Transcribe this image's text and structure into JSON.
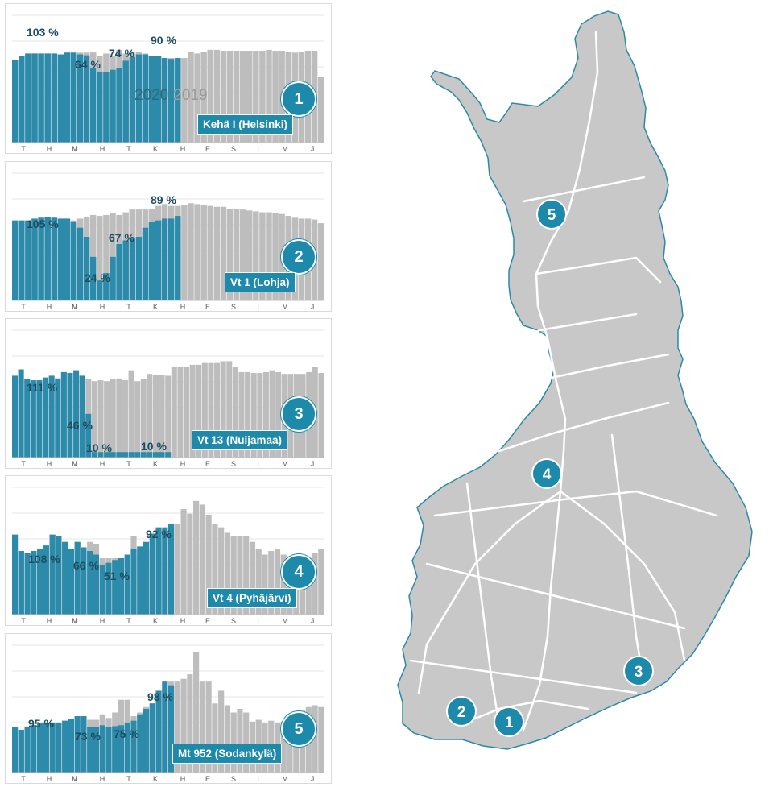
{
  "months": [
    "T",
    "H",
    "M",
    "H",
    "T",
    "K",
    "H",
    "E",
    "S",
    "L",
    "M",
    "J"
  ],
  "legend": {
    "y2020": "2020",
    "y2019": "2019"
  },
  "colors": {
    "y2020": "#2c8aaa",
    "y2019": "#bdbdbd",
    "accent": "#1e8aab",
    "map_fill": "#c8c8c8",
    "map_border": "#2a8aa8"
  },
  "chart_data": [
    {
      "type": "bar",
      "id": 1,
      "badge": "1",
      "label": "Kehä I (Helsinki)",
      "annotations": [
        "103 %",
        "64 %",
        "74 %",
        "90 %"
      ],
      "series": [
        {
          "name": "2020",
          "values": [
            91,
            95,
            98,
            98,
            98,
            98,
            98,
            97,
            99,
            99,
            97,
            96,
            82,
            78,
            78,
            80,
            82,
            90,
            94,
            97,
            97,
            95,
            95,
            93,
            92,
            93
          ]
        },
        {
          "name": "2019",
          "values": [
            91,
            95,
            98,
            98,
            98,
            98,
            98,
            97,
            99,
            99,
            99,
            99,
            100,
            95,
            98,
            95,
            102,
            98,
            99,
            100,
            98,
            95,
            95,
            93,
            93,
            92,
            93,
            100,
            98,
            100,
            102,
            102,
            101,
            101,
            101,
            101,
            101,
            101,
            101,
            102,
            101,
            101,
            100,
            99,
            100,
            101,
            101,
            72
          ]
        }
      ]
    },
    {
      "type": "bar",
      "id": 2,
      "badge": "2",
      "label": "Vt 1 (Lohja)",
      "annotations": [
        "105 %",
        "24 %",
        "67 %",
        "89 %"
      ],
      "series": [
        {
          "name": "2020",
          "values": [
            88,
            88,
            88,
            90,
            91,
            92,
            91,
            90,
            90,
            87,
            80,
            70,
            48,
            22,
            30,
            48,
            62,
            66,
            68,
            70,
            80,
            86,
            88,
            90,
            90,
            93
          ]
        },
        {
          "name": "2019",
          "values": [
            88,
            88,
            88,
            90,
            91,
            92,
            91,
            90,
            90,
            88,
            90,
            92,
            94,
            93,
            94,
            96,
            94,
            97,
            100,
            100,
            100,
            101,
            104,
            106,
            104,
            104,
            105,
            107,
            106,
            105,
            104,
            103,
            103,
            101,
            101,
            100,
            99,
            98,
            97,
            97,
            96,
            95,
            93,
            91,
            90,
            90,
            89,
            85
          ]
        }
      ]
    },
    {
      "type": "bar",
      "id": 3,
      "badge": "3",
      "label": "Vt 13 (Nuijamaa)",
      "annotations": [
        "111 %",
        "46 %",
        "10 %",
        "10 %"
      ],
      "series": [
        {
          "name": "2020",
          "values": [
            90,
            97,
            86,
            85,
            85,
            88,
            90,
            87,
            94,
            93,
            96,
            90,
            48,
            6,
            6,
            6,
            6,
            6,
            6,
            6,
            6,
            6,
            6,
            6,
            6,
            6
          ]
        },
        {
          "name": "2019",
          "values": [
            90,
            97,
            86,
            85,
            85,
            88,
            90,
            87,
            94,
            93,
            96,
            90,
            86,
            84,
            85,
            84,
            86,
            87,
            85,
            96,
            84,
            86,
            92,
            91,
            91,
            90,
            100,
            100,
            100,
            102,
            102,
            104,
            104,
            104,
            106,
            106,
            100,
            94,
            94,
            93,
            93,
            94,
            96,
            94,
            92,
            92,
            92,
            92,
            94,
            100,
            93
          ]
        }
      ]
    },
    {
      "type": "bar",
      "id": 4,
      "badge": "4",
      "label": "Vt 4 (Pyhäjärvi)",
      "annotations": [
        "108 %",
        "66 %",
        "51 %",
        "92 %"
      ],
      "series": [
        {
          "name": "2020",
          "values": [
            88,
            70,
            68,
            70,
            72,
            76,
            88,
            86,
            80,
            72,
            80,
            74,
            70,
            66,
            55,
            57,
            60,
            62,
            66,
            72,
            75,
            80,
            89,
            96,
            96,
            100
          ]
        },
        {
          "name": "2019",
          "values": [
            88,
            70,
            68,
            70,
            72,
            76,
            88,
            86,
            80,
            72,
            80,
            74,
            80,
            78,
            62,
            62,
            62,
            62,
            64,
            86,
            66,
            70,
            72,
            80,
            91,
            96,
            100,
            116,
            111,
            125,
            121,
            110,
            100,
            96,
            90,
            86,
            86,
            86,
            80,
            72,
            66,
            70,
            72,
            66,
            60,
            58,
            56,
            62,
            68,
            72
          ]
        }
      ]
    },
    {
      "type": "bar",
      "id": 5,
      "badge": "5",
      "label": "Mt 952 (Sodankylä)",
      "annotations": [
        "95 %",
        "73 %",
        "75 %",
        "98 %"
      ],
      "series": [
        {
          "name": "2020",
          "values": [
            50,
            47,
            50,
            52,
            54,
            54,
            55,
            55,
            57,
            59,
            62,
            62,
            50,
            50,
            52,
            50,
            51,
            52,
            55,
            57,
            64,
            70,
            76,
            90,
            100,
            96
          ]
        },
        {
          "name": "2019",
          "values": [
            50,
            47,
            50,
            52,
            54,
            54,
            55,
            55,
            57,
            59,
            62,
            62,
            58,
            58,
            64,
            60,
            66,
            80,
            80,
            62,
            66,
            72,
            76,
            83,
            90,
            100,
            100,
            103,
            108,
            132,
            100,
            100,
            76,
            90,
            74,
            66,
            70,
            66,
            56,
            58,
            54,
            57,
            55,
            56,
            60,
            58,
            68,
            72,
            74,
            72
          ]
        }
      ]
    }
  ],
  "map": {
    "markers": [
      {
        "label": "1"
      },
      {
        "label": "2"
      },
      {
        "label": "3"
      },
      {
        "label": "4"
      },
      {
        "label": "5"
      }
    ]
  }
}
